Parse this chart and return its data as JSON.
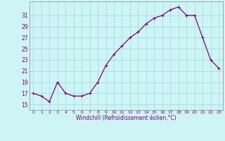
{
  "x": [
    0,
    1,
    2,
    3,
    4,
    5,
    6,
    7,
    8,
    9,
    10,
    11,
    12,
    13,
    14,
    15,
    16,
    17,
    18,
    19,
    20,
    21,
    22,
    23
  ],
  "y": [
    17,
    16.5,
    15.5,
    19,
    17,
    16.5,
    16.5,
    17,
    19,
    22,
    24,
    25.5,
    27,
    28,
    29.5,
    30.5,
    31,
    32,
    32.5,
    31,
    31,
    27,
    23,
    21.5
  ],
  "line_color": "#800080",
  "marker": "+",
  "marker_size": 4,
  "bg_color": "#cef5f5",
  "grid_color": "#aadddd",
  "xlabel": "Windchill (Refroidissement éolien,°C)",
  "xlabel_color": "#800080",
  "tick_color": "#800080",
  "ytick_labels": [
    "15",
    "17",
    "19",
    "21",
    "23",
    "25",
    "27",
    "29",
    "31"
  ],
  "ytick_vals": [
    15,
    17,
    19,
    21,
    23,
    25,
    27,
    29,
    31
  ],
  "xtick_vals": [
    0,
    1,
    2,
    3,
    4,
    5,
    6,
    7,
    8,
    9,
    10,
    11,
    12,
    13,
    14,
    15,
    16,
    17,
    18,
    19,
    20,
    21,
    22,
    23
  ],
  "xtick_labels": [
    "0",
    "1",
    "2",
    "3",
    "4",
    "5",
    "6",
    "7",
    "8",
    "9",
    "10",
    "11",
    "12",
    "13",
    "14",
    "15",
    "16",
    "17",
    "18",
    "19",
    "20",
    "21",
    "22",
    "23"
  ],
  "ylim": [
    14.0,
    33.5
  ],
  "xlim": [
    -0.5,
    23.5
  ]
}
